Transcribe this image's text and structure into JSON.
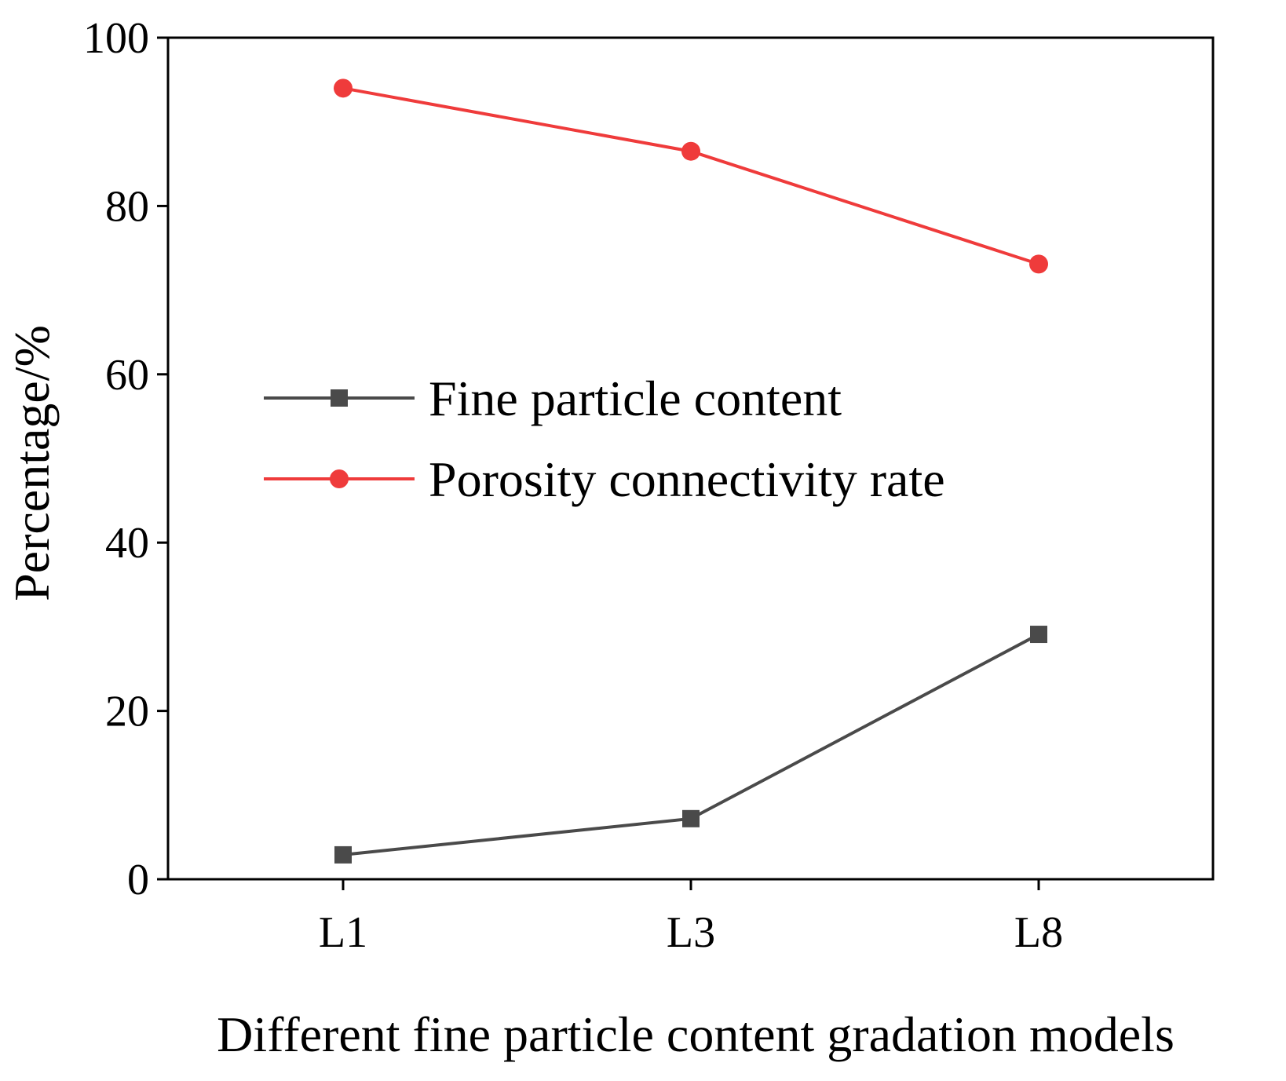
{
  "chart_data": {
    "type": "line",
    "title": "",
    "xlabel": "Different fine particle content gradation models",
    "ylabel": "Percentage/%",
    "categories": [
      "L1",
      "L3",
      "L8"
    ],
    "ylim": [
      0,
      100
    ],
    "yticks": [
      0,
      20,
      40,
      60,
      80,
      100
    ],
    "legend_position": "center-left",
    "series": [
      {
        "name": "Fine particle content",
        "values": [
          2.9,
          7.2,
          29.1
        ],
        "color": "#4a4a4a",
        "marker": "square"
      },
      {
        "name": "Porosity connectivity rate",
        "values": [
          94.0,
          86.5,
          73.1
        ],
        "color": "#ef3b3b",
        "marker": "circle"
      }
    ]
  }
}
